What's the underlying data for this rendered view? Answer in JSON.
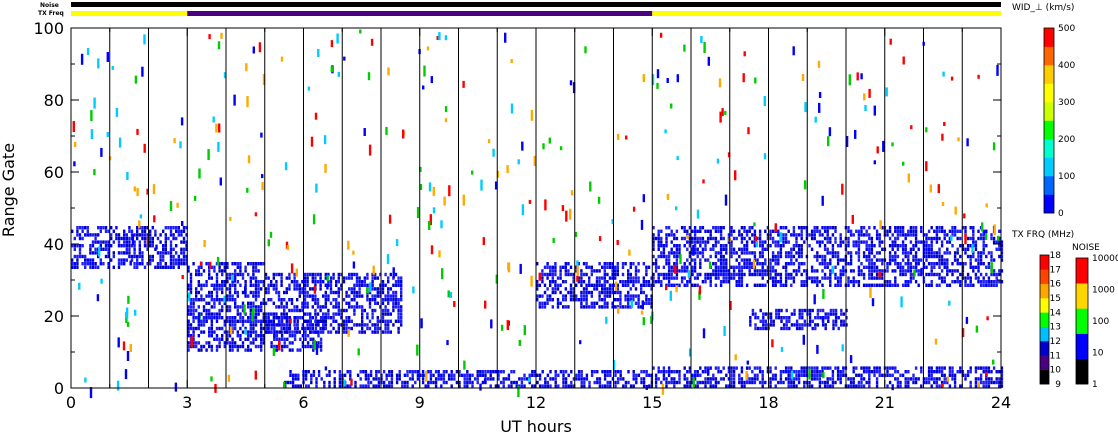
{
  "chart_data": {
    "type": "heatmap",
    "xlabel": "UT hours",
    "ylabel": "Range Gate",
    "xlim": [
      0,
      24
    ],
    "ylim": [
      0,
      100
    ],
    "x_ticks": [
      "0",
      "3",
      "6",
      "9",
      "12",
      "15",
      "18",
      "21",
      "24"
    ],
    "y_ticks": [
      "0",
      "20",
      "40",
      "60",
      "80",
      "100"
    ],
    "header_rows": {
      "noise_label": "Noise",
      "freq_label": "TX Freq",
      "freq_segments": [
        {
          "start": 0,
          "end": 3,
          "color": "#ffff00"
        },
        {
          "start": 3,
          "end": 15,
          "color": "#4b0082"
        },
        {
          "start": 15,
          "end": 24,
          "color": "#ffff00"
        }
      ]
    },
    "scan_boundaries_ut": [
      1,
      2,
      3,
      4,
      5,
      6,
      7,
      8,
      9,
      10,
      11,
      12,
      13,
      14,
      15,
      16,
      17,
      18,
      19,
      20,
      21,
      22,
      23
    ],
    "echo_bands": [
      {
        "t0": 0.0,
        "t1": 3.0,
        "g0": 33,
        "g1": 45
      },
      {
        "t0": 3.0,
        "t1": 5.0,
        "g0": 18,
        "g1": 35
      },
      {
        "t0": 3.0,
        "t1": 6.5,
        "g0": 10,
        "g1": 20
      },
      {
        "t0": 5.0,
        "t1": 8.5,
        "g0": 15,
        "g1": 32
      },
      {
        "t0": 5.5,
        "t1": 15.0,
        "g0": 0,
        "g1": 5
      },
      {
        "t0": 12.0,
        "t1": 15.0,
        "g0": 22,
        "g1": 35
      },
      {
        "t0": 15.0,
        "t1": 24.0,
        "g0": 28,
        "g1": 45
      },
      {
        "t0": 15.0,
        "t1": 24.0,
        "g0": 0,
        "g1": 6
      },
      {
        "t0": 17.5,
        "t1": 20.0,
        "g0": 16,
        "g1": 22
      }
    ],
    "colorbars": [
      {
        "title": "WID_⊥ (km/s)",
        "ticks": [
          "0",
          "100",
          "200",
          "300",
          "400",
          "500"
        ],
        "colors": [
          "#0000ff",
          "#0066ff",
          "#00ccff",
          "#00ffcc",
          "#00ff00",
          "#ccff00",
          "#ffff00",
          "#ffcc00",
          "#ff6600",
          "#ff0000"
        ]
      },
      {
        "title": "TX FRQ (MHz)",
        "ticks": [
          "9",
          "10",
          "11",
          "12",
          "13",
          "14",
          "15",
          "16",
          "17",
          "18"
        ],
        "colors": [
          "#000000",
          "#4b0082",
          "#0000cd",
          "#00bfff",
          "#00ff00",
          "#ffff00",
          "#ffa500",
          "#ff4500",
          "#ff0000"
        ]
      },
      {
        "title": "NOISE",
        "ticks": [
          "1",
          "10",
          "100",
          "1000",
          "10000"
        ],
        "colors": [
          "#000000",
          "#0000ff",
          "#00ff00",
          "#ffd700",
          "#ff0000"
        ]
      }
    ]
  }
}
